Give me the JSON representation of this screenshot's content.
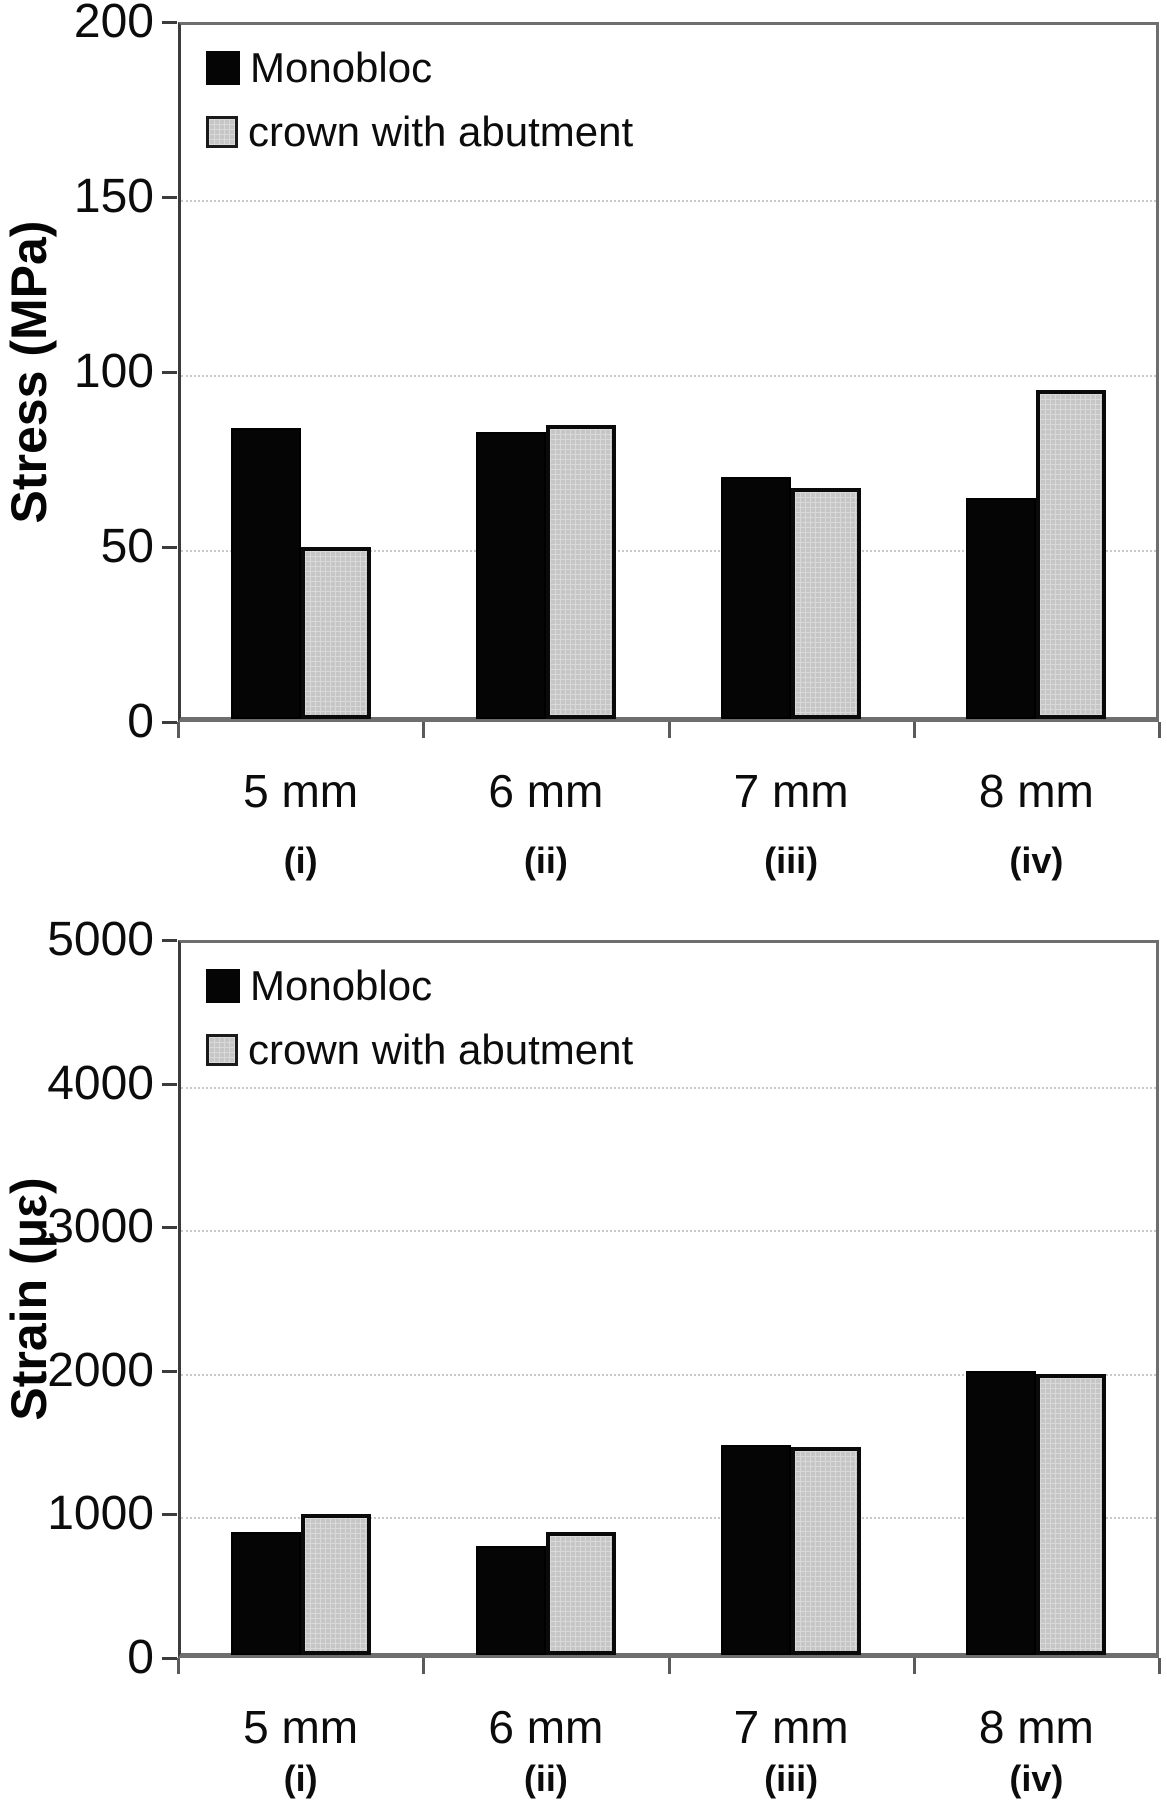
{
  "figure_description": "Two stacked grouped bar charts comparing monobloc implants vs crown-with-abutment implants at four implant lengths",
  "colors": {
    "monobloc_bar": "#050505",
    "crown_bar": "#c6c6c6",
    "background": "#ffffff"
  },
  "chart_data": [
    {
      "type": "bar",
      "title": "",
      "xlabel": "",
      "ylabel": "Stress (MPa)",
      "categories": [
        "5 mm",
        "6 mm",
        "7 mm",
        "8 mm"
      ],
      "category_sublabels": [
        "(i)",
        "(ii)",
        "(iii)",
        "(iv)"
      ],
      "series": [
        {
          "name": "Monobloc",
          "color": "#050505",
          "pattern": "solid",
          "values": [
            84,
            83,
            70,
            64
          ]
        },
        {
          "name": "crown with abutment",
          "color": "#c6c6c6",
          "pattern": "grid",
          "values": [
            50,
            85,
            67,
            95
          ]
        }
      ],
      "ylim": [
        0,
        200
      ],
      "yticks": [
        0,
        50,
        100,
        150,
        200
      ],
      "grid": "horizontal-dotted",
      "legend_position": "top-left-inside"
    },
    {
      "type": "bar",
      "title": "",
      "xlabel": "",
      "ylabel": "Strain (με)",
      "categories": [
        "5 mm",
        "6 mm",
        "7 mm",
        "8 mm"
      ],
      "category_sublabels": [
        "(i)",
        "(ii)",
        "(iii)",
        "(iv)"
      ],
      "series": [
        {
          "name": "Monobloc",
          "color": "#050505",
          "pattern": "solid",
          "values": [
            880,
            780,
            1480,
            2000
          ]
        },
        {
          "name": "crown with abutment",
          "color": "#c6c6c6",
          "pattern": "grid",
          "values": [
            1000,
            880,
            1470,
            1980
          ]
        }
      ],
      "ylim": [
        0,
        5000
      ],
      "yticks": [
        0,
        1000,
        2000,
        3000,
        4000,
        5000
      ],
      "grid": "horizontal-dotted",
      "legend_position": "top-left-inside"
    }
  ]
}
